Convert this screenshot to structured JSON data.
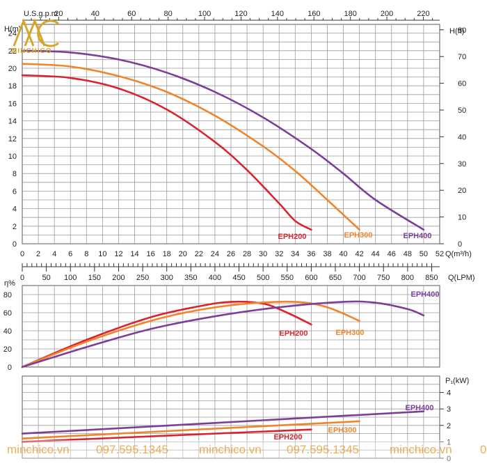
{
  "brand": {
    "name": "MINCHICO",
    "color": "#d4a72c"
  },
  "watermark": {
    "items": [
      "minchico.vn",
      "097.595.1345",
      "minchico.vn",
      "097.595.1345",
      "minchico.vn",
      "0"
    ],
    "color": "#e8a33a"
  },
  "chart_data": [
    {
      "type": "line",
      "title": "",
      "y_left_label": "H(m)",
      "y_left_ticks": [
        "0",
        "2",
        "4",
        "6",
        "8",
        "10",
        "12",
        "14",
        "16",
        "18",
        "20",
        "22",
        "24"
      ],
      "y_right_label": "H(ft)",
      "y_right_ticks": [
        "0",
        "10",
        "20",
        "30",
        "40",
        "50",
        "60",
        "70",
        "80"
      ],
      "x_top_label": "U.S.g.p.m",
      "x_top_ticks": [
        "20",
        "40",
        "60",
        "80",
        "100",
        "120",
        "140",
        "160",
        "180",
        "200",
        "220"
      ],
      "x_bottom_label": "Q(m³/h)",
      "x_bottom_ticks": [
        "0",
        "2",
        "4",
        "6",
        "8",
        "10",
        "12",
        "14",
        "16",
        "18",
        "20",
        "22",
        "24",
        "26",
        "28",
        "30",
        "32",
        "34",
        "36",
        "38",
        "40",
        "42",
        "44",
        "46",
        "48",
        "50",
        "52"
      ],
      "xlim": [
        0,
        52
      ],
      "ylim": [
        0,
        25
      ],
      "series": [
        {
          "name": "EPH200",
          "color": "#d9232e",
          "x": [
            0,
            6,
            12,
            18,
            24,
            28,
            32,
            34,
            36
          ],
          "y": [
            19.2,
            18.9,
            17.7,
            15.3,
            11.6,
            8.4,
            4.6,
            2.6,
            1.6
          ]
        },
        {
          "name": "EPH300",
          "color": "#f0842a",
          "x": [
            0,
            6,
            12,
            18,
            24,
            30,
            34,
            38,
            42
          ],
          "y": [
            20.5,
            20.2,
            19.1,
            17.3,
            14.6,
            11.1,
            8.3,
            5.0,
            1.6
          ]
        },
        {
          "name": "EPH400",
          "color": "#7b3f98",
          "x": [
            0,
            6,
            12,
            18,
            24,
            30,
            36,
            40,
            44,
            50
          ],
          "y": [
            22.0,
            21.8,
            21.0,
            19.5,
            17.3,
            14.4,
            10.8,
            8.0,
            5.0,
            1.6
          ]
        }
      ]
    },
    {
      "type": "axis",
      "label": "Q(LPM)",
      "ticks": [
        "0",
        "50",
        "100",
        "150",
        "200",
        "250",
        "300",
        "350",
        "400",
        "450",
        "500",
        "550",
        "600",
        "650",
        "700",
        "750",
        "800",
        "850"
      ],
      "xlim": [
        0,
        866.7
      ]
    },
    {
      "type": "line",
      "y_label": "η%",
      "y_ticks": [
        "0",
        "20",
        "40",
        "60",
        "80"
      ],
      "xlim": [
        0,
        52
      ],
      "ylim": [
        0,
        90
      ],
      "series": [
        {
          "name": "EPH200",
          "color": "#d9232e",
          "x": [
            0,
            8,
            16,
            22,
            26,
            30,
            33,
            36
          ],
          "y": [
            0,
            30,
            55,
            67,
            72,
            70,
            60,
            47
          ]
        },
        {
          "name": "EPH300",
          "color": "#f0842a",
          "x": [
            0,
            8,
            16,
            22,
            28,
            34,
            38,
            42
          ],
          "y": [
            0,
            28,
            51,
            63,
            70,
            72,
            66,
            51
          ]
        },
        {
          "name": "EPH400",
          "color": "#7b3f98",
          "x": [
            0,
            8,
            16,
            24,
            32,
            40,
            44,
            48,
            50
          ],
          "y": [
            0,
            22,
            42,
            56,
            66,
            72,
            71,
            64,
            57
          ]
        }
      ]
    },
    {
      "type": "line",
      "y_label": "P₁(kW)",
      "y_ticks": [
        "0",
        "1",
        "2",
        "3",
        "4"
      ],
      "xlim": [
        0,
        52
      ],
      "ylim": [
        0,
        5
      ],
      "series": [
        {
          "name": "EPH200",
          "color": "#d9232e",
          "x": [
            0,
            36
          ],
          "y": [
            1.0,
            1.75
          ]
        },
        {
          "name": "EPH300",
          "color": "#f0842a",
          "x": [
            0,
            42
          ],
          "y": [
            1.2,
            2.25
          ]
        },
        {
          "name": "EPH400",
          "color": "#7b3f98",
          "x": [
            0,
            50
          ],
          "y": [
            1.5,
            2.85
          ]
        }
      ]
    }
  ]
}
